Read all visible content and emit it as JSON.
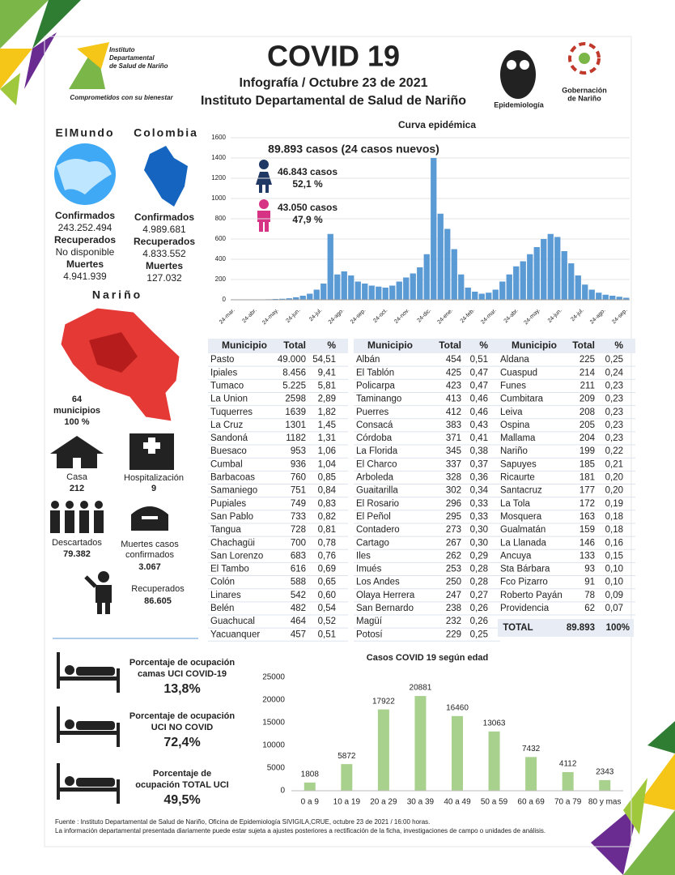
{
  "header": {
    "title": "COVID 19",
    "subtitle": "Infografía / Octubre 23 de 2021",
    "org": "Instituto Departamental de Salud de Nariño",
    "logo_lines": [
      "Instituto",
      "Departamental",
      "de Salud de Nariño"
    ],
    "logo_tagline": "Comprometidos con su bienestar",
    "epi": "Epidemiología",
    "gob_lines": [
      "Gobernación",
      "de Nariño"
    ]
  },
  "world": {
    "title": "ElMundo",
    "confirmados_label": "Confirmados",
    "confirmados": "243.252.494",
    "recuperados_label": "Recuperados",
    "recuperados": "No disponible",
    "muertes_label": "Muertes",
    "muertes": "4.941.939"
  },
  "colombia": {
    "title": "Colombia",
    "confirmados_label": "Confirmados",
    "confirmados": "4.989.681",
    "recuperados_label": "Recuperados",
    "recuperados": "4.833.552",
    "muertes_label": "Muertes",
    "muertes": "127.032"
  },
  "narino": {
    "title": "Nariño",
    "municipios_count": "64",
    "municipios_label": "municipios",
    "municipios_pct": "100 %",
    "casa_label": "Casa",
    "casa": "212",
    "hosp_label": "Hospitalización",
    "hosp": "9",
    "descartados_label": "Descartados",
    "descartados": "79.382",
    "muertes_lines": [
      "Muertes casos",
      "confirmados"
    ],
    "muertes": "3.067",
    "recuperados_label": "Recuperados",
    "recuperados": "86.605"
  },
  "uci": [
    {
      "lines": [
        "Porcentaje de ocupación",
        "camas UCI COVID-19"
      ],
      "value": "13,8%"
    },
    {
      "lines": [
        "Porcentaje de ocupación",
        "UCI NO COVID"
      ],
      "value": "72,4%"
    },
    {
      "lines": [
        "Porcentaje de",
        "ocupación TOTAL UCI"
      ],
      "value": "49,5%"
    }
  ],
  "table": {
    "header": [
      "Municipio",
      "Total",
      "%"
    ],
    "groups": [
      [
        [
          "Pasto",
          "49.000",
          "54,51"
        ],
        [
          "Ipiales",
          "8.456",
          "9,41"
        ],
        [
          "Tumaco",
          "5.225",
          "5,81"
        ],
        [
          "La Union",
          "2598",
          "2,89"
        ],
        [
          "Tuquerres",
          "1639",
          "1,82"
        ],
        [
          "La Cruz",
          "1301",
          "1,45"
        ],
        [
          "Sandoná",
          "1182",
          "1,31"
        ],
        [
          "Buesaco",
          "953",
          "1,06"
        ],
        [
          "Cumbal",
          "936",
          "1,04"
        ],
        [
          "Barbacoas",
          "760",
          "0,85"
        ],
        [
          "Samaniego",
          "751",
          "0,84"
        ],
        [
          "Pupiales",
          "749",
          "0,83"
        ],
        [
          "San Pablo",
          "733",
          "0,82"
        ],
        [
          "Tangua",
          "728",
          "0,81"
        ],
        [
          "Chachagüi",
          "700",
          "0,78"
        ],
        [
          "San Lorenzo",
          "683",
          "0,76"
        ],
        [
          "El Tambo",
          "616",
          "0,69"
        ],
        [
          "Colón",
          "588",
          "0,65"
        ],
        [
          "Linares",
          "542",
          "0,60"
        ],
        [
          "Belén",
          "482",
          "0,54"
        ],
        [
          "Guachucal",
          "464",
          "0,52"
        ],
        [
          "Yacuanquer",
          "457",
          "0,51"
        ]
      ],
      [
        [
          "Albán",
          "454",
          "0,51"
        ],
        [
          "El Tablón",
          "425",
          "0,47"
        ],
        [
          "Policarpa",
          "423",
          "0,47"
        ],
        [
          "Taminango",
          "413",
          "0,46"
        ],
        [
          "Puerres",
          "412",
          "0,46"
        ],
        [
          "Consacá",
          "383",
          "0,43"
        ],
        [
          "Córdoba",
          "371",
          "0,41"
        ],
        [
          "La Florida",
          "345",
          "0,38"
        ],
        [
          "El Charco",
          "337",
          "0,37"
        ],
        [
          "Arboleda",
          "328",
          "0,36"
        ],
        [
          "Guaitarilla",
          "302",
          "0,34"
        ],
        [
          "El Rosario",
          "296",
          "0,33"
        ],
        [
          "El Peñol",
          "295",
          "0,33"
        ],
        [
          "Contadero",
          "273",
          "0,30"
        ],
        [
          "Cartago",
          "267",
          "0,30"
        ],
        [
          "Iles",
          "262",
          "0,29"
        ],
        [
          "Imués",
          "253",
          "0,28"
        ],
        [
          "Los Andes",
          "250",
          "0,28"
        ],
        [
          "Olaya Herrera",
          "247",
          "0,27"
        ],
        [
          "San Bernardo",
          "238",
          "0,26"
        ],
        [
          "Magüí",
          "232",
          "0,26"
        ],
        [
          "Potosí",
          "229",
          "0,25"
        ]
      ],
      [
        [
          "Aldana",
          "225",
          "0,25"
        ],
        [
          "Cuaspud",
          "214",
          "0,24"
        ],
        [
          "Funes",
          "211",
          "0,23"
        ],
        [
          "Cumbitara",
          "209",
          "0,23"
        ],
        [
          "Leiva",
          "208",
          "0,23"
        ],
        [
          "Ospina",
          "205",
          "0,23"
        ],
        [
          "Mallama",
          "204",
          "0,23"
        ],
        [
          "Nariño",
          "199",
          "0,22"
        ],
        [
          "Sapuyes",
          "185",
          "0,21"
        ],
        [
          "Ricaurte",
          "181",
          "0,20"
        ],
        [
          "Santacruz",
          "177",
          "0,20"
        ],
        [
          "La Tola",
          "172",
          "0,19"
        ],
        [
          "Mosquera",
          "163",
          "0,18"
        ],
        [
          "Gualmatán",
          "159",
          "0,18"
        ],
        [
          "La Llanada",
          "146",
          "0,16"
        ],
        [
          "Ancuya",
          "133",
          "0,15"
        ],
        [
          "Sta Bárbara",
          "93",
          "0,10"
        ],
        [
          "Fco Pizarro",
          "91",
          "0,10"
        ],
        [
          "Roberto Payán",
          "78",
          "0,09"
        ],
        [
          "Providencia",
          "62",
          "0,07"
        ]
      ]
    ],
    "total": [
      "TOTAL",
      "89.893",
      "100%"
    ]
  },
  "chart_data": [
    {
      "type": "bar",
      "title": "Curva epidémica",
      "total_label": "89.893 casos (24 casos nuevos)",
      "female": {
        "cases": "46.843 casos",
        "pct": "52,1 %"
      },
      "male": {
        "cases": "43.050 casos",
        "pct": "47,9 %"
      },
      "color": "#5b9bd5",
      "ylim": [
        0,
        1600
      ],
      "yticks": [
        0,
        200,
        400,
        600,
        800,
        1000,
        1200,
        1400,
        1600
      ],
      "grid": true,
      "xtick_labels": [
        "24-mar.",
        "24-abr.",
        "24-may.",
        "24-jun.",
        "24-jul.",
        "24-ago.",
        "24-sep.",
        "24-oct.",
        "24-nov.",
        "24-dic.",
        "24-ene.",
        "24-feb.",
        "24-mar.",
        "24-abr.",
        "24-may.",
        "24-jun.",
        "24-jul.",
        "24-ago.",
        "24-sep."
      ],
      "values": [
        0,
        0,
        1,
        2,
        3,
        5,
        8,
        10,
        15,
        25,
        40,
        60,
        100,
        160,
        650,
        250,
        280,
        240,
        180,
        160,
        140,
        130,
        120,
        140,
        180,
        220,
        260,
        320,
        450,
        1400,
        850,
        700,
        500,
        250,
        120,
        80,
        60,
        70,
        100,
        180,
        250,
        330,
        380,
        450,
        520,
        600,
        650,
        620,
        480,
        360,
        240,
        150,
        100,
        70,
        50,
        40,
        30,
        20
      ]
    },
    {
      "type": "bar",
      "title": "Casos COVID 19  según edad",
      "color": "#a9d18e",
      "categories": [
        "0 a 9",
        "10 a 19",
        "20 a 29",
        "30 a 39",
        "40 a 49",
        "50 a 59",
        "60 a 69",
        "70 a 79",
        "80 y mas"
      ],
      "values": [
        1808,
        5872,
        17922,
        20881,
        16460,
        13063,
        7432,
        4112,
        2343
      ],
      "ylim": [
        0,
        25000
      ],
      "yticks": [
        0,
        5000,
        10000,
        15000,
        20000,
        25000
      ]
    }
  ],
  "footer": [
    "Fuente : Instituto Departamental de Salud de Nariño, Oficina de Epidemiología SIVIGILA,CRUE,  octubre 23 de 2021 / 16:00  horas.",
    "La información departamental presentada diariamente puede estar sujeta a ajustes posteriores a  rectificación de la ficha, investigaciones de campo o unidades de análisis."
  ]
}
